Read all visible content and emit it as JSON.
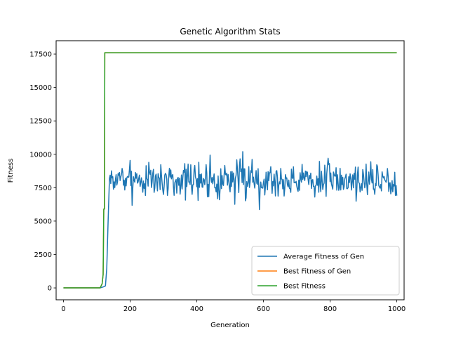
{
  "chart_data": {
    "type": "line",
    "title": "Genetic Algorithm Stats",
    "xlabel": "Generation",
    "ylabel": "Fitness",
    "xlim": [
      -22,
      1022
    ],
    "ylim": [
      -890,
      18500
    ],
    "x_ticks": [
      0,
      200,
      400,
      600,
      800,
      1000
    ],
    "y_ticks": [
      0,
      2500,
      5000,
      7500,
      10000,
      12500,
      15000,
      17500
    ],
    "grid": false,
    "legend_position": "lower-right",
    "series": [
      {
        "name": "Average Fitness of Gen",
        "color": "#1f77b4",
        "generated": true,
        "seed": 7,
        "ramp_points": [
          [
            0,
            0
          ],
          [
            110,
            0
          ],
          [
            120,
            80
          ],
          [
            126,
            150
          ],
          [
            130,
            1500
          ],
          [
            134,
            5000
          ],
          [
            138,
            8200
          ]
        ],
        "noise_start": 140,
        "noise_end": 1000,
        "noise_mean": 8100,
        "noise_amplitude": 900,
        "noise_min": 5800,
        "noise_max": 10200
      },
      {
        "name": "Best Fitness of Gen",
        "color": "#ff7f0e",
        "points": [
          [
            0,
            0
          ],
          [
            110,
            0
          ],
          [
            116,
            300
          ],
          [
            119,
            1000
          ],
          [
            121,
            5900
          ],
          [
            123,
            5900
          ],
          [
            124,
            17600
          ],
          [
            1000,
            17600
          ]
        ]
      },
      {
        "name": "Best Fitness",
        "color": "#2ca02c",
        "points": [
          [
            0,
            0
          ],
          [
            110,
            0
          ],
          [
            116,
            300
          ],
          [
            119,
            1000
          ],
          [
            121,
            5900
          ],
          [
            123,
            5900
          ],
          [
            124,
            17600
          ],
          [
            1000,
            17600
          ]
        ]
      }
    ]
  }
}
